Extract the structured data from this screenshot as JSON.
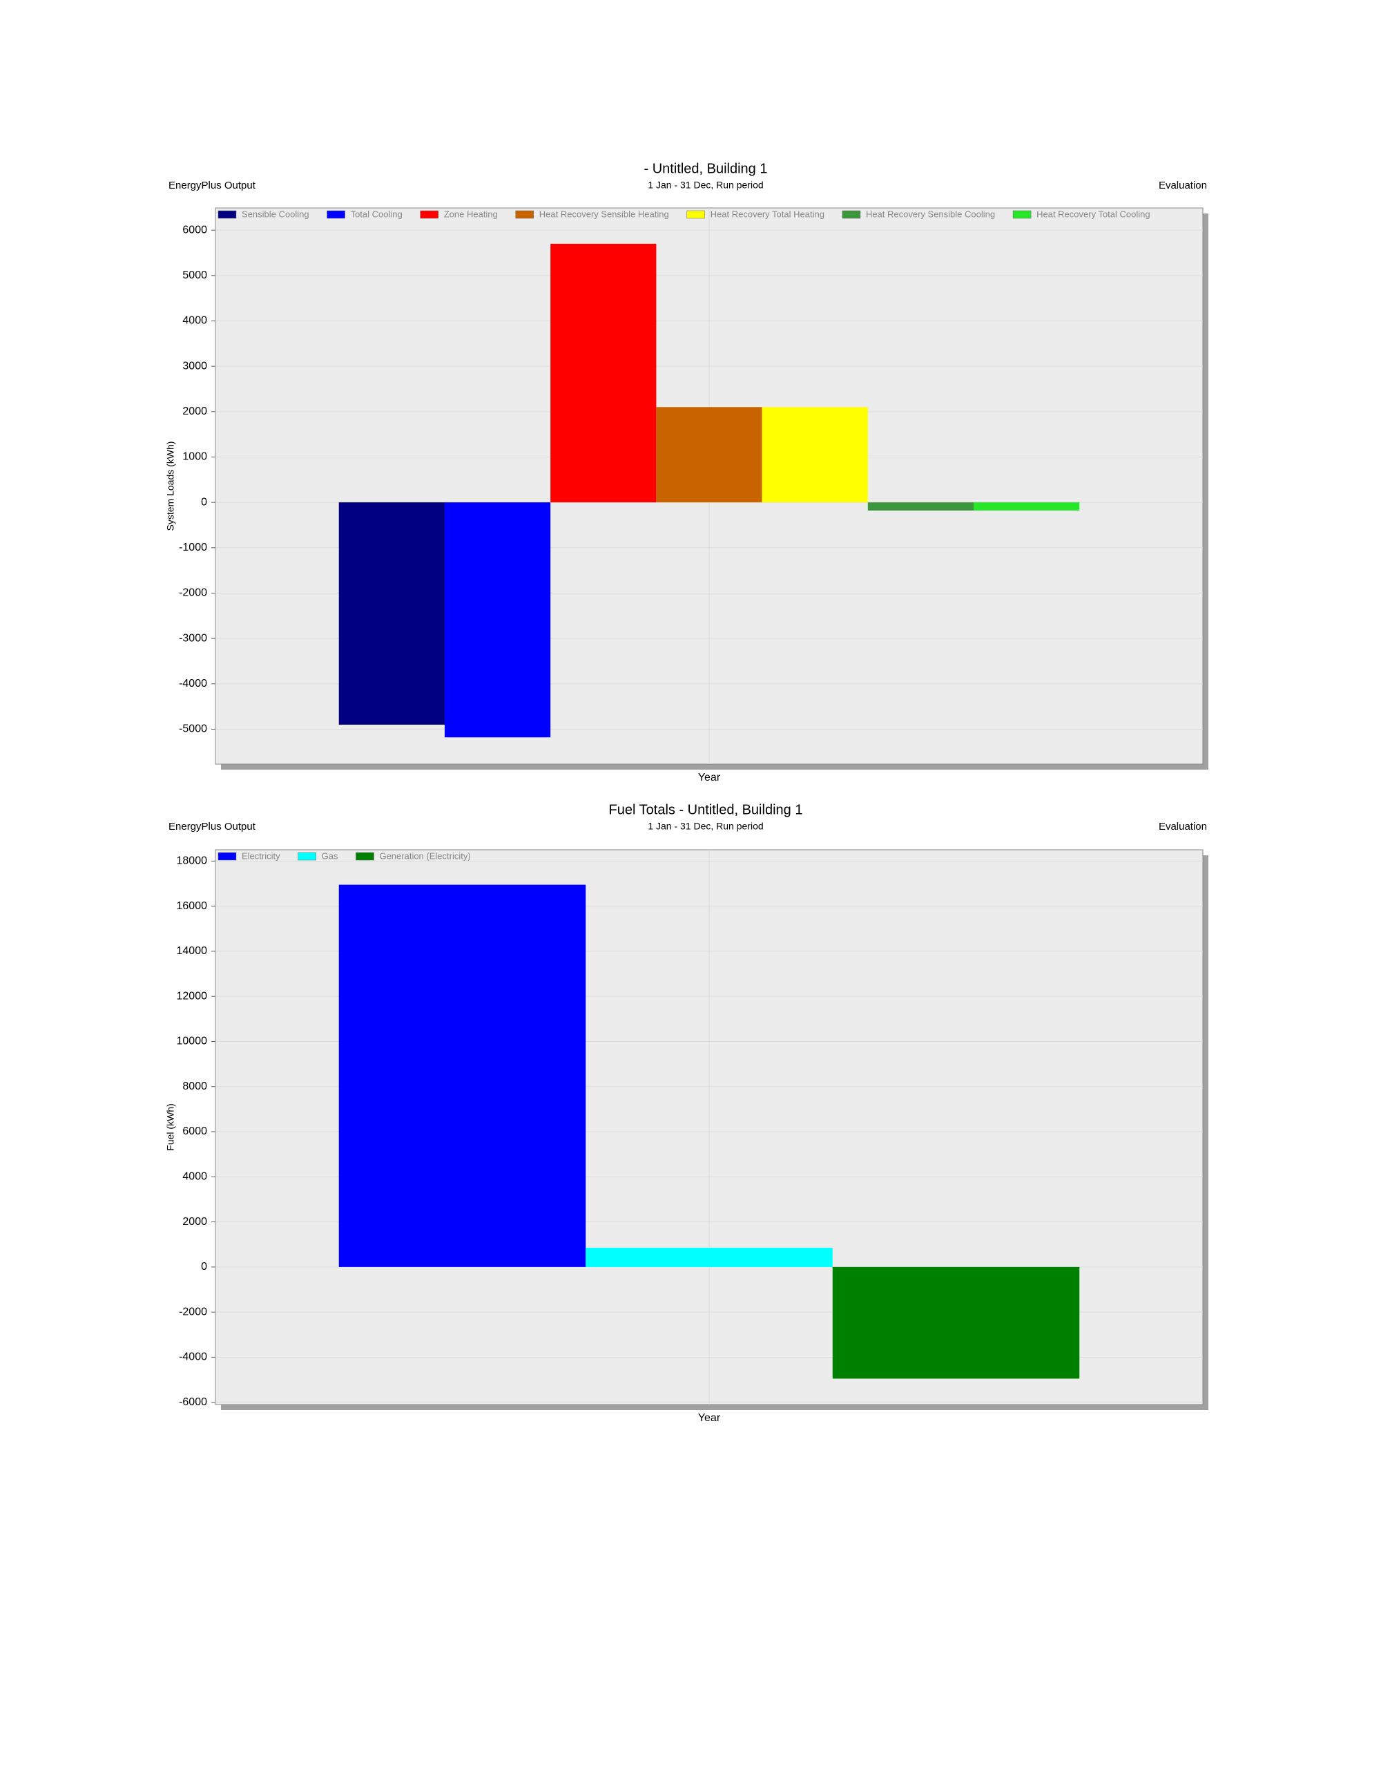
{
  "chart_data": [
    {
      "type": "bar",
      "title": "- Untitled, Building 1",
      "subtitle": "1 Jan - 31 Dec, Run period",
      "left_header": "EnergyPlus Output",
      "right_header": "Evaluation",
      "y_label": "System Loads (kWh)",
      "categories": [
        "Year"
      ],
      "series": [
        {
          "name": "Sensible Cooling",
          "color": "#000080",
          "values": [
            -4900
          ]
        },
        {
          "name": "Total Cooling",
          "color": "#0000ff",
          "values": [
            -5180
          ]
        },
        {
          "name": "Zone Heating",
          "color": "#ff0000",
          "values": [
            5700
          ]
        },
        {
          "name": "Heat Recovery Sensible Heating",
          "color": "#c86400",
          "values": [
            2100
          ]
        },
        {
          "name": "Heat Recovery Total Heating",
          "color": "#ffff00",
          "values": [
            2100
          ]
        },
        {
          "name": "Heat Recovery Sensible Cooling",
          "color": "#3c963c",
          "values": [
            -180
          ]
        },
        {
          "name": "Heat Recovery Total Cooling",
          "color": "#28e628",
          "values": [
            -180
          ]
        }
      ],
      "ylim": [
        -5770,
        6490
      ],
      "yticks": [
        -5000,
        -4000,
        -3000,
        -2000,
        -1000,
        0,
        1000,
        2000,
        3000,
        4000,
        5000,
        6000
      ],
      "grid": true
    },
    {
      "type": "bar",
      "title": "Fuel Totals - Untitled, Building 1",
      "subtitle": "1 Jan - 31 Dec, Run period",
      "left_header": "EnergyPlus Output",
      "right_header": "Evaluation",
      "y_label": "Fuel (kWh)",
      "categories": [
        "Year"
      ],
      "series": [
        {
          "name": "Electricity",
          "color": "#0000ff",
          "values": [
            16950
          ]
        },
        {
          "name": "Gas",
          "color": "#00ffff",
          "values": [
            850
          ]
        },
        {
          "name": "Generation (Electricity)",
          "color": "#008000",
          "values": [
            -4950
          ]
        }
      ],
      "ylim": [
        -6100,
        18500
      ],
      "yticks": [
        -6000,
        -4000,
        -2000,
        0,
        2000,
        4000,
        6000,
        8000,
        10000,
        12000,
        14000,
        16000,
        18000
      ],
      "grid": true
    }
  ]
}
